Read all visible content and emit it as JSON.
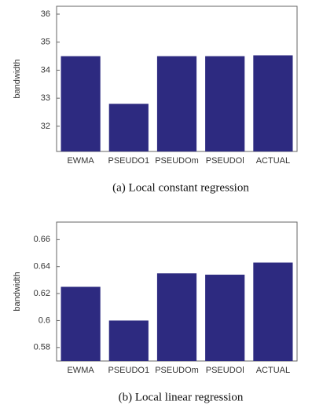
{
  "chart_data": [
    {
      "type": "bar",
      "caption": "(a) Local constant regression",
      "ylabel": "bandwidth",
      "categories": [
        "EWMA",
        "PSEUDO1",
        "PSEUDOm",
        "PSEUDOl",
        "ACTUAL"
      ],
      "values": [
        34.5,
        32.8,
        34.5,
        34.5,
        34.53
      ],
      "color": "#2d2a80",
      "ylim": [
        31.1,
        36.28
      ],
      "yticks": [
        32,
        33,
        34,
        35,
        36
      ]
    },
    {
      "type": "bar",
      "caption": "(b) Local linear regression",
      "ylabel": "bandwidth",
      "categories": [
        "EWMA",
        "PSEUDO1",
        "PSEUDOm",
        "PSEUDOl",
        "ACTUAL"
      ],
      "values": [
        0.625,
        0.6,
        0.635,
        0.634,
        0.643
      ],
      "color": "#2d2a80",
      "ylim": [
        0.57,
        0.673
      ],
      "yticks": [
        0.58,
        0.6,
        0.62,
        0.64,
        0.66
      ]
    }
  ]
}
